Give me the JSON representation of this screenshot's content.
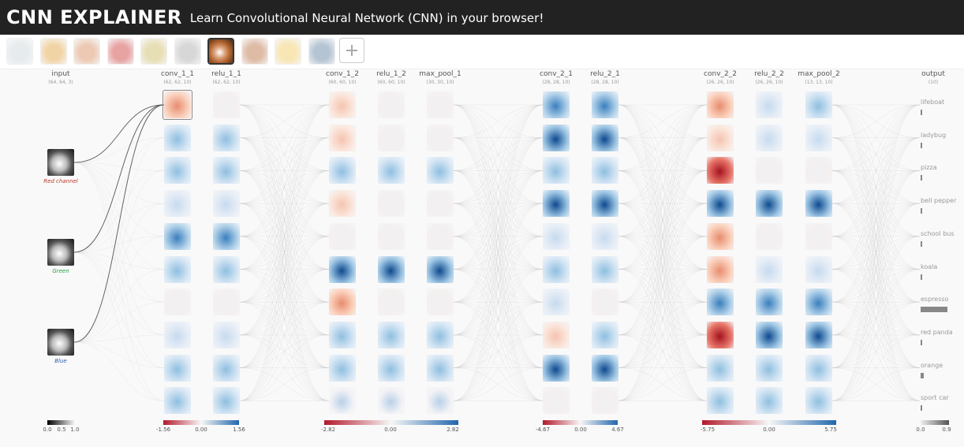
{
  "header": {
    "title": "CNN EXPLAINER",
    "subtitle": "Learn Convolutional Neural Network (CNN) in your browser!"
  },
  "toolbar": {
    "images": [
      {
        "name": "lifeboat",
        "color": "#c9d4d8",
        "selected": false
      },
      {
        "name": "ladybug",
        "color": "#e2a23a",
        "selected": false
      },
      {
        "name": "pizza",
        "color": "#d88a5a",
        "selected": false
      },
      {
        "name": "bell pepper",
        "color": "#cc3333",
        "selected": false
      },
      {
        "name": "school bus",
        "color": "#c9b85a",
        "selected": false
      },
      {
        "name": "koala",
        "color": "#a8a8a8",
        "selected": false
      },
      {
        "name": "espresso",
        "color": "#c07044",
        "selected": true
      },
      {
        "name": "red panda",
        "color": "#b86a3a",
        "selected": false
      },
      {
        "name": "orange",
        "color": "#f0c85a",
        "selected": false
      },
      {
        "name": "sport car",
        "color": "#5a7ea0",
        "selected": false
      }
    ],
    "add_icon": "plus-icon"
  },
  "layers": [
    {
      "name": "input",
      "dim": "(64, 64, 3)"
    },
    {
      "name": "conv_1_1",
      "dim": "(62, 62, 10)"
    },
    {
      "name": "relu_1_1",
      "dim": "(62, 62, 10)"
    },
    {
      "name": "conv_1_2",
      "dim": "(60, 60, 10)"
    },
    {
      "name": "relu_1_2",
      "dim": "(60, 60, 10)"
    },
    {
      "name": "max_pool_1",
      "dim": "(30, 30, 10)"
    },
    {
      "name": "conv_2_1",
      "dim": "(28, 28, 10)"
    },
    {
      "name": "relu_2_1",
      "dim": "(28, 28, 10)"
    },
    {
      "name": "conv_2_2",
      "dim": "(26, 26, 10)"
    },
    {
      "name": "relu_2_2",
      "dim": "(26, 26, 10)"
    },
    {
      "name": "max_pool_2",
      "dim": "(13, 13, 10)"
    },
    {
      "name": "output",
      "dim": "(10)"
    }
  ],
  "input_channels": [
    {
      "label": "Red channel",
      "color": "#c0392b"
    },
    {
      "label": "Green",
      "color": "#27a344"
    },
    {
      "label": "Blue",
      "color": "#2c5fb0"
    }
  ],
  "outputs": [
    {
      "label": "lifeboat",
      "prob": 0.0
    },
    {
      "label": "ladybug",
      "prob": 0.0
    },
    {
      "label": "pizza",
      "prob": 0.0
    },
    {
      "label": "bell pepper",
      "prob": 0.02
    },
    {
      "label": "school bus",
      "prob": 0.0
    },
    {
      "label": "koala",
      "prob": 0.0
    },
    {
      "label": "espresso",
      "prob": 0.85
    },
    {
      "label": "red panda",
      "prob": 0.0
    },
    {
      "label": "orange",
      "prob": 0.1
    },
    {
      "label": "sport car",
      "prob": 0.0
    }
  ],
  "legends": [
    {
      "name": "input",
      "ticks": [
        "0.0",
        "0.5",
        "1.0"
      ]
    },
    {
      "name": "block1",
      "ticks": [
        "-1.56",
        "0.00",
        "1.56"
      ]
    },
    {
      "name": "block2",
      "ticks": [
        "-2.82",
        "0.00",
        "2.82"
      ]
    },
    {
      "name": "block3",
      "ticks": [
        "-4.67",
        "0.00",
        "4.67"
      ]
    },
    {
      "name": "block4",
      "ticks": [
        "-5.75",
        "0.00",
        "5.75"
      ]
    },
    {
      "name": "output",
      "ticks": [
        "0.0",
        "0.9"
      ]
    }
  ],
  "colors": {
    "header_bg": "#222222",
    "positive": "#1f5fa8",
    "negative": "#b2182b",
    "neutral": "#f7f7f7"
  }
}
